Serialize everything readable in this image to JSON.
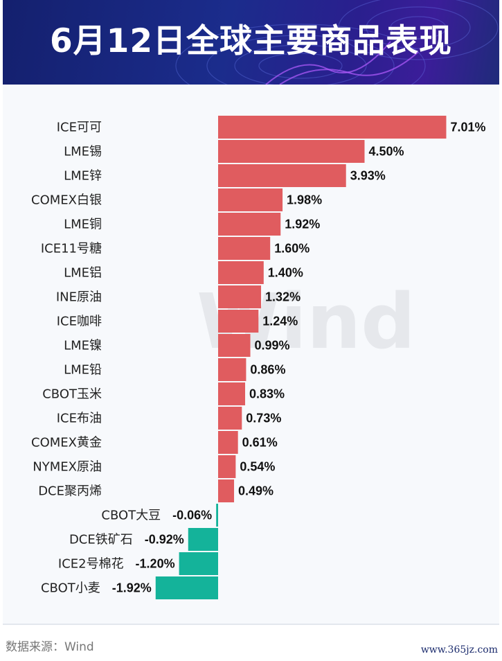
{
  "header": {
    "title": "6月12日全球主要商品表现"
  },
  "watermark": "Wind",
  "footer": {
    "source": "数据来源：Wind",
    "site": "www.365jz.com"
  },
  "colors": {
    "positive": "#e05c5f",
    "negative": "#14b39a",
    "header_bg": "#1b2c8c"
  },
  "chart_data": {
    "type": "bar",
    "orientation": "horizontal",
    "categories": [
      "ICE可可",
      "LME锡",
      "LME锌",
      "COMEX白银",
      "LME铜",
      "ICE11号糖",
      "LME铝",
      "INE原油",
      "ICE咖啡",
      "LME镍",
      "LME铅",
      "CBOT玉米",
      "ICE布油",
      "COMEX黄金",
      "NYMEX原油",
      "DCE聚丙烯",
      "CBOT大豆",
      "DCE铁矿石",
      "ICE2号棉花",
      "CBOT小麦"
    ],
    "values": [
      7.01,
      4.5,
      3.93,
      1.98,
      1.92,
      1.6,
      1.4,
      1.32,
      1.24,
      0.99,
      0.86,
      0.83,
      0.73,
      0.61,
      0.54,
      0.49,
      -0.06,
      -0.92,
      -1.2,
      -1.92
    ],
    "labels": [
      "7.01%",
      "4.50%",
      "3.93%",
      "1.98%",
      "1.92%",
      "1.60%",
      "1.40%",
      "1.32%",
      "1.24%",
      "0.99%",
      "0.86%",
      "0.83%",
      "0.73%",
      "0.61%",
      "0.54%",
      "0.49%",
      "-0.06%",
      "-0.92%",
      "-1.20%",
      "-1.92%"
    ],
    "unit": "%",
    "title": "",
    "xlabel": "",
    "ylabel": "",
    "grid": false,
    "legend": "none"
  }
}
